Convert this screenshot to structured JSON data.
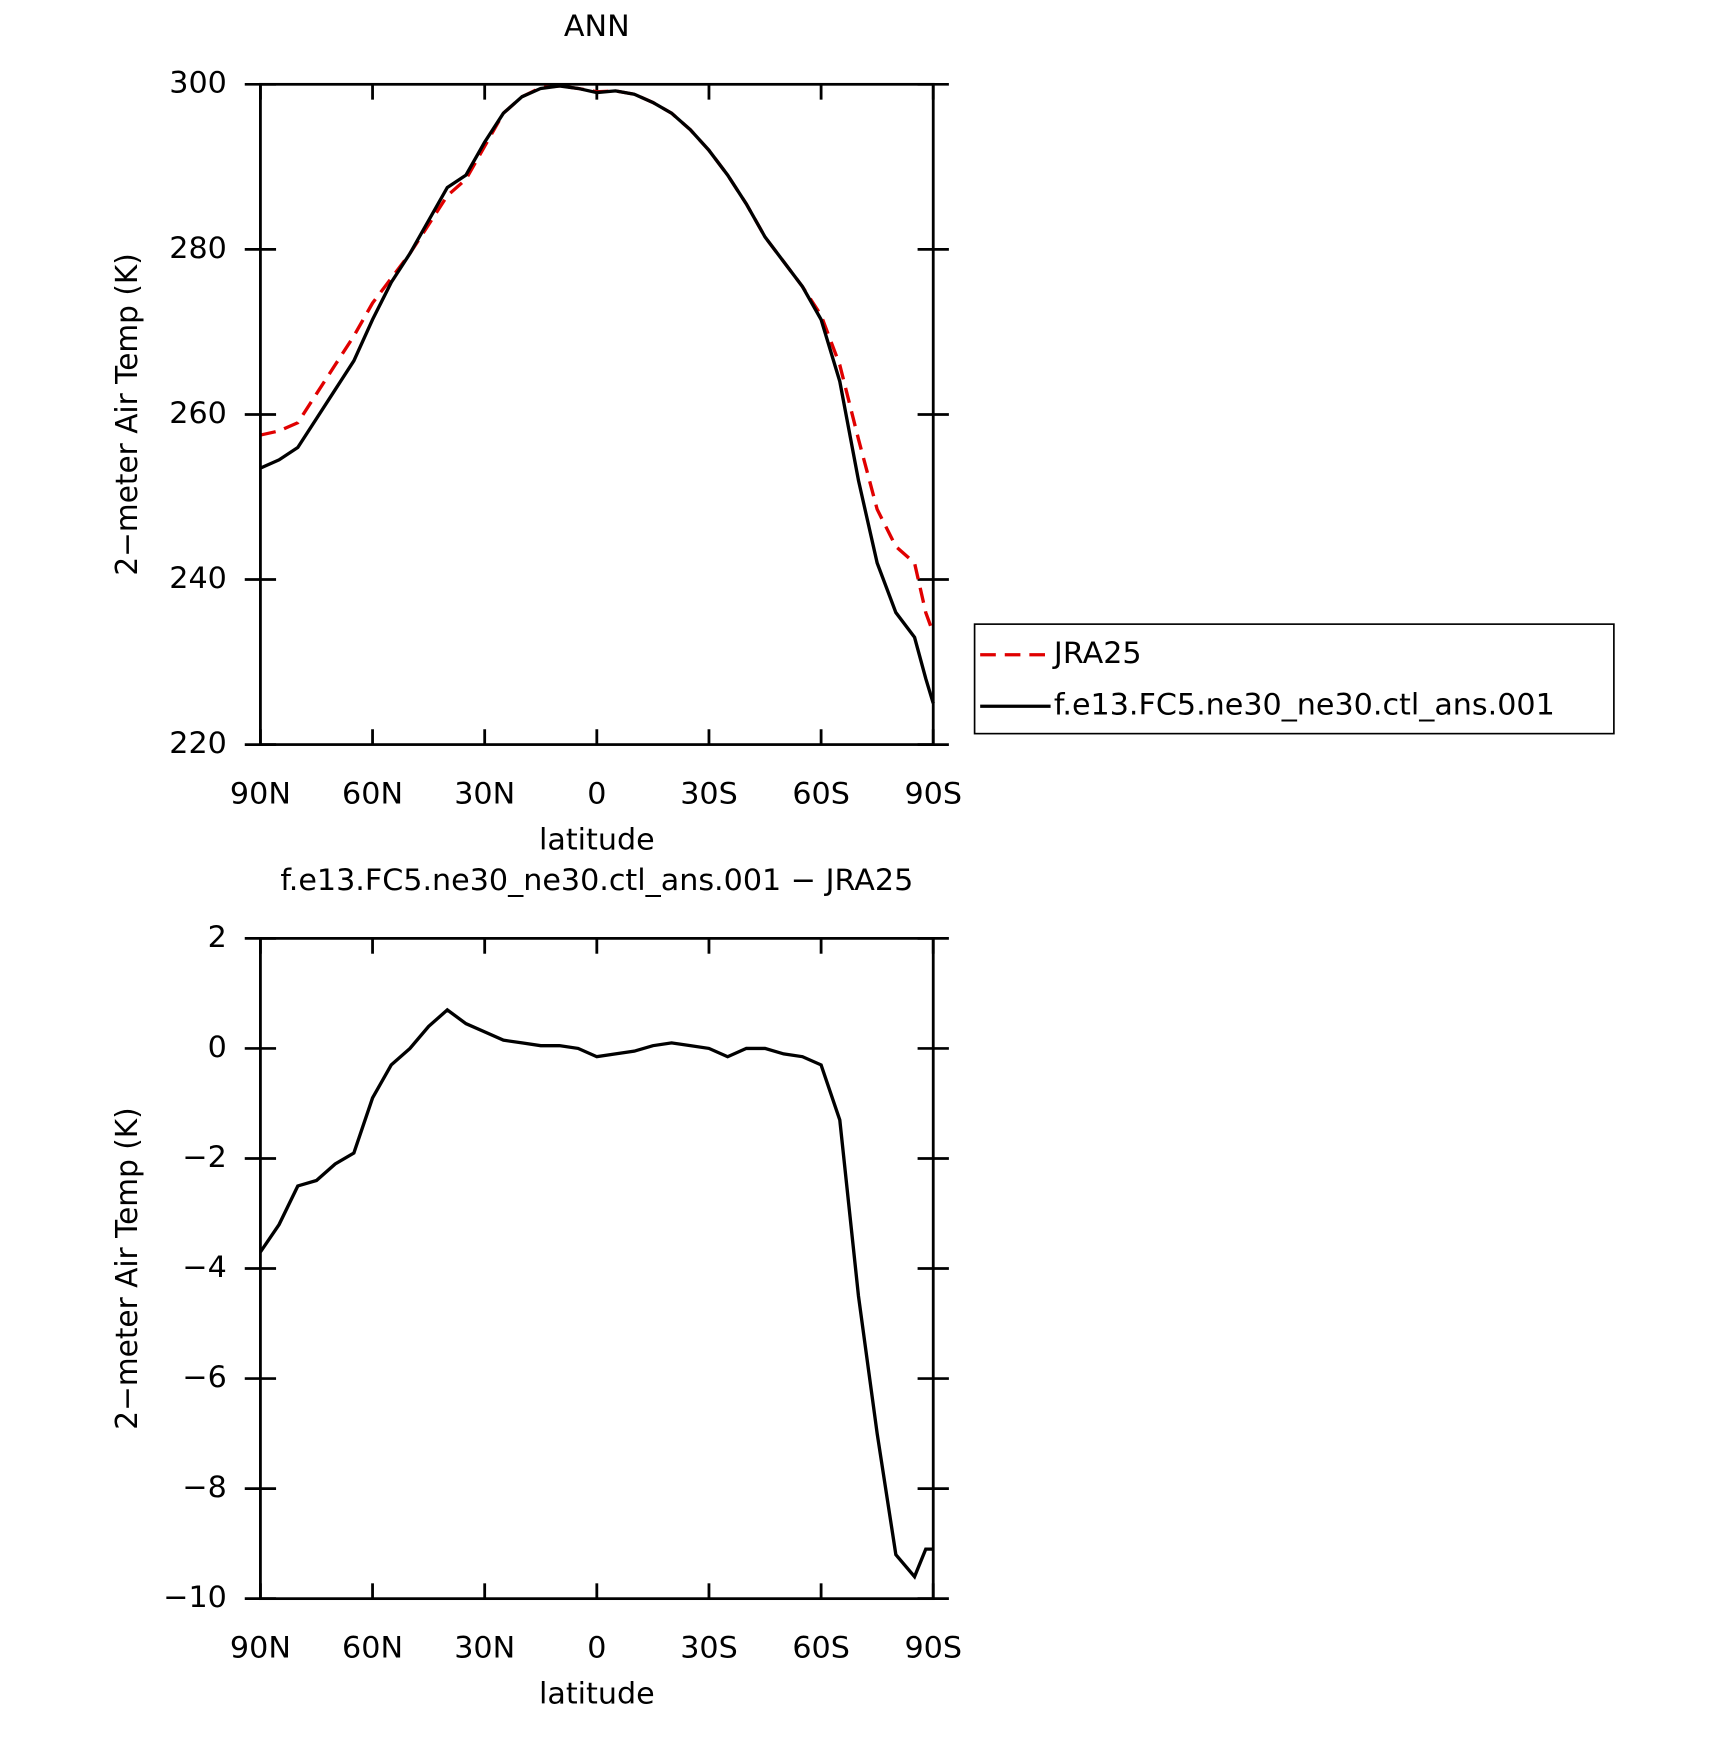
{
  "chart_data": [
    {
      "type": "line",
      "title": "ANN",
      "xlabel": "latitude",
      "ylabel": "2−meter Air Temp (K)",
      "x": [
        90,
        85,
        80,
        75,
        70,
        65,
        60,
        55,
        50,
        45,
        40,
        35,
        30,
        25,
        20,
        15,
        10,
        5,
        0,
        -5,
        -10,
        -15,
        -20,
        -25,
        -30,
        -35,
        -40,
        -45,
        -50,
        -55,
        -60,
        -65,
        -70,
        -75,
        -80,
        -85,
        -88,
        -90
      ],
      "xlim": [
        90,
        -90
      ],
      "xticks": [
        {
          "value": 90,
          "label": "90N"
        },
        {
          "value": 60,
          "label": "60N"
        },
        {
          "value": 30,
          "label": "30N"
        },
        0,
        {
          "value": -30,
          "label": "30S"
        },
        {
          "value": -60,
          "label": "60S"
        },
        {
          "value": -90,
          "label": "90S"
        }
      ],
      "ylim": [
        220,
        300
      ],
      "yticks": [
        220,
        240,
        260,
        280,
        300
      ],
      "legend": "right",
      "series": [
        {
          "name": "JRA25",
          "color": "#e00000",
          "dash": true,
          "values": [
            257.5,
            258,
            259,
            262.5,
            266,
            269.5,
            273.5,
            276.5,
            279.5,
            283,
            286.5,
            288.5,
            292.5,
            296.5,
            298.5,
            299.6,
            299.8,
            299.5,
            299.1,
            299.2,
            298.8,
            297.8,
            296.5,
            294.5,
            292,
            289,
            285.5,
            281.5,
            278.5,
            275.5,
            272,
            266,
            257,
            248.5,
            244,
            242,
            236,
            233.5
          ]
        },
        {
          "name": "f.e13.FC5.ne30_ne30.ctl_ans.001",
          "color": "#000000",
          "dash": false,
          "values": [
            253.5,
            254.5,
            256,
            259.5,
            263,
            266.5,
            271.5,
            276,
            279.5,
            283.5,
            287.5,
            289,
            293,
            296.5,
            298.5,
            299.5,
            299.8,
            299.5,
            299,
            299.2,
            298.8,
            297.8,
            296.5,
            294.5,
            292,
            289,
            285.5,
            281.5,
            278.5,
            275.5,
            271.5,
            264,
            252,
            242,
            236,
            233,
            228,
            225
          ]
        }
      ]
    },
    {
      "type": "line",
      "title": "f.e13.FC5.ne30_ne30.ctl_ans.001 − JRA25",
      "xlabel": "latitude",
      "ylabel": "2−meter Air Temp (K)",
      "x": [
        90,
        85,
        80,
        75,
        70,
        65,
        60,
        55,
        50,
        45,
        40,
        35,
        30,
        25,
        20,
        15,
        10,
        5,
        0,
        -5,
        -10,
        -15,
        -20,
        -25,
        -30,
        -35,
        -40,
        -45,
        -50,
        -55,
        -60,
        -65,
        -70,
        -75,
        -80,
        -85,
        -88,
        -90
      ],
      "xlim": [
        90,
        -90
      ],
      "xticks": [
        {
          "value": 90,
          "label": "90N"
        },
        {
          "value": 60,
          "label": "60N"
        },
        {
          "value": 30,
          "label": "30N"
        },
        0,
        {
          "value": -30,
          "label": "30S"
        },
        {
          "value": -60,
          "label": "60S"
        },
        {
          "value": -90,
          "label": "90S"
        }
      ],
      "ylim": [
        -10,
        2
      ],
      "yticks": [
        {
          "value": -10,
          "label": "−10"
        },
        {
          "value": -8,
          "label": "−8"
        },
        {
          "value": -6,
          "label": "−6"
        },
        {
          "value": -4,
          "label": "−4"
        },
        {
          "value": -2,
          "label": "−2"
        },
        0,
        2
      ],
      "series": [
        {
          "color": "#000000",
          "dash": false,
          "values": [
            -3.7,
            -3.2,
            -2.5,
            -2.4,
            -2.1,
            -1.9,
            -0.9,
            -0.3,
            0.0,
            0.4,
            0.7,
            0.45,
            0.3,
            0.15,
            0.1,
            0.05,
            0.05,
            0.0,
            -0.15,
            -0.1,
            -0.05,
            0.05,
            0.1,
            0.05,
            0.0,
            -0.15,
            0.0,
            0.0,
            -0.1,
            -0.15,
            -0.3,
            -1.3,
            -4.5,
            -7.0,
            -9.2,
            -9.6,
            -9.1,
            -9.1
          ]
        }
      ]
    }
  ]
}
